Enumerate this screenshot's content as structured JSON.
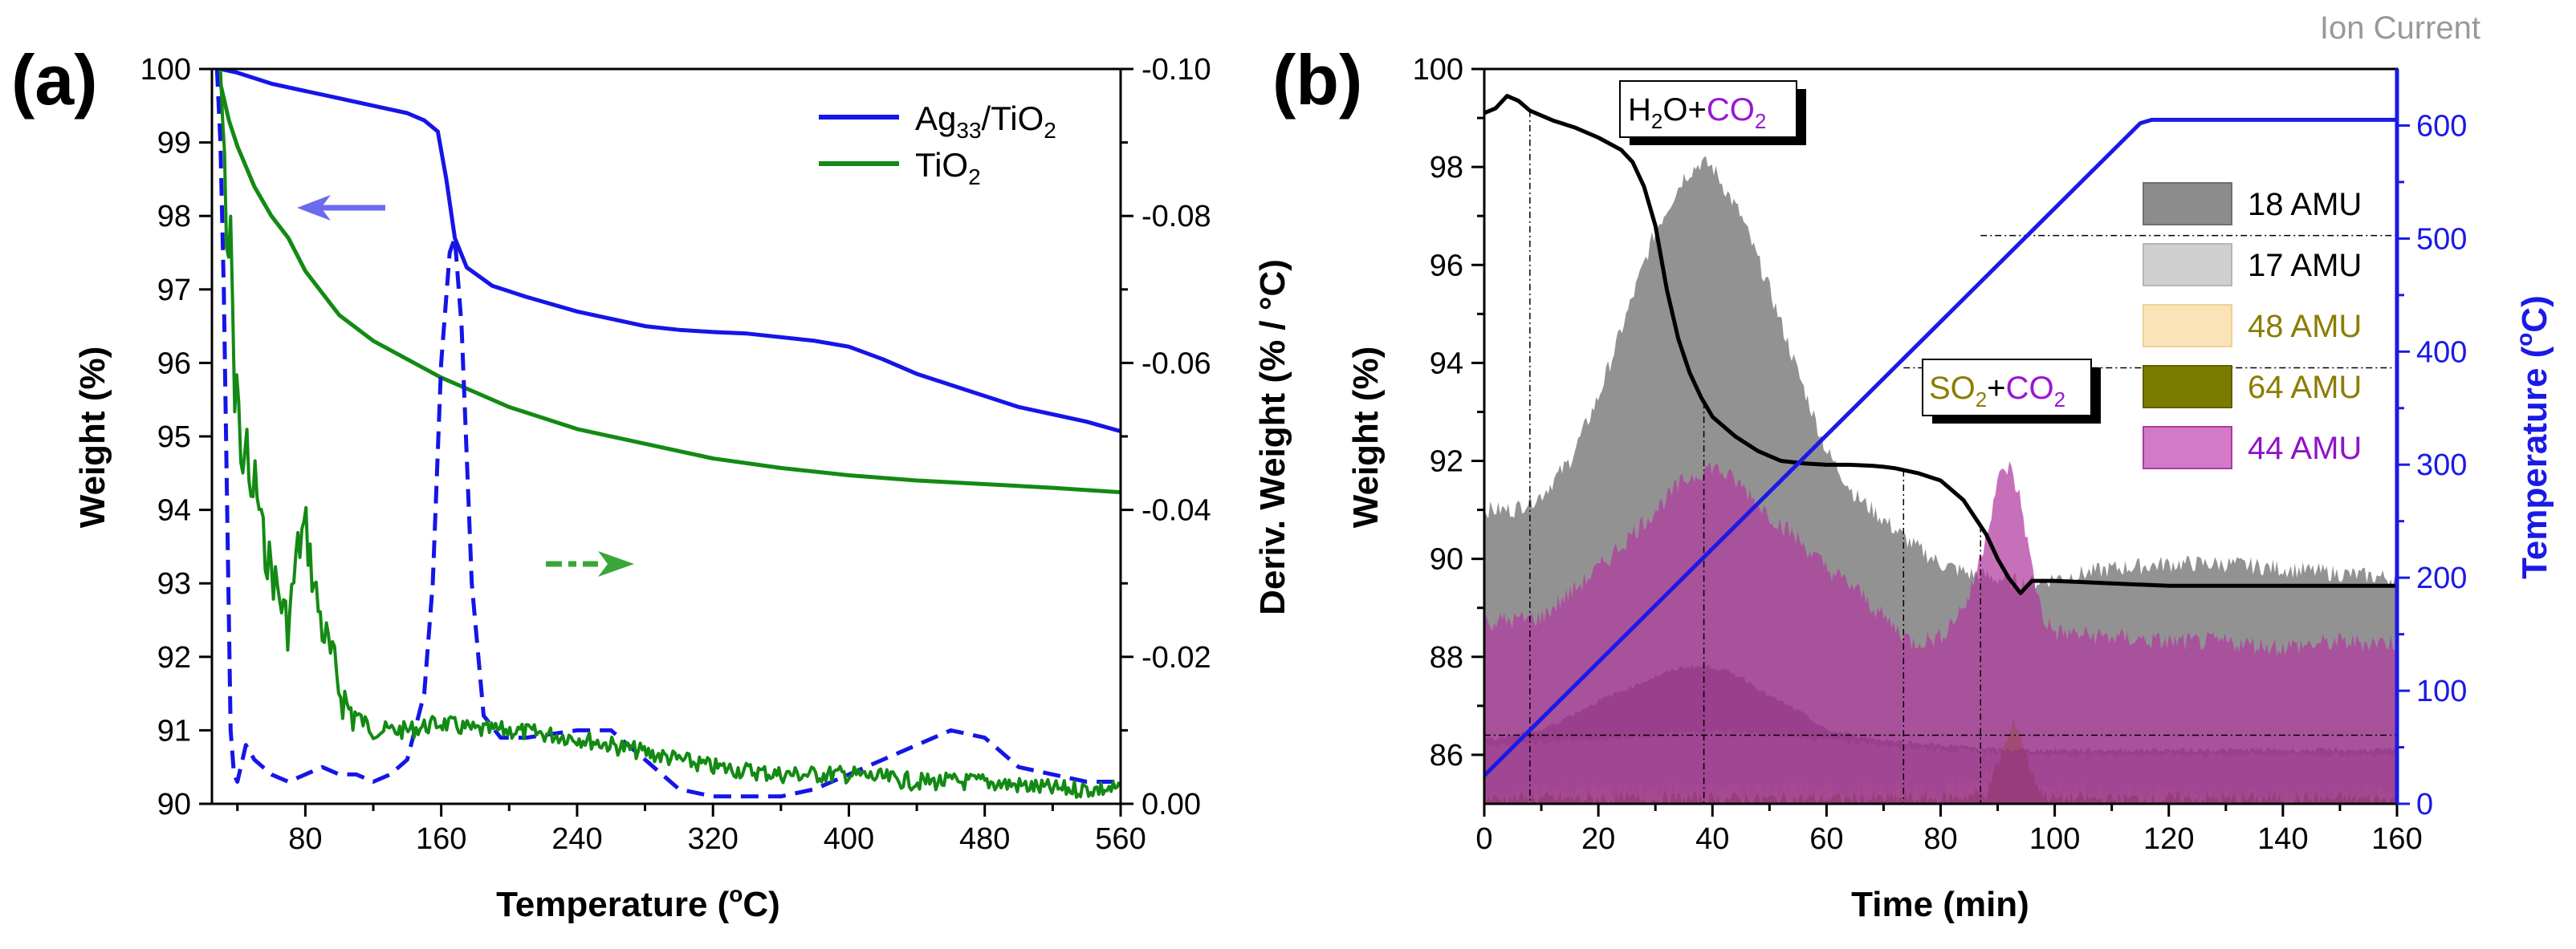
{
  "panels": {
    "a": {
      "label": "(a)",
      "xlabel_main": "Temperature (",
      "xlabel_unit": "o",
      "xlabel_tail": "C)",
      "ylabel_left": "Weight (%)",
      "ylabel_right": "Deriv. Weight (% / °C)",
      "legend": [
        {
          "pre": "Ag",
          "sub1": "33",
          "mid": "/TiO",
          "sub2": "2",
          "color": "#1515e8"
        },
        {
          "pre": "TiO",
          "sub1": "2",
          "mid": "",
          "sub2": "",
          "color": "#138a13"
        }
      ]
    },
    "b": {
      "label": "(b)",
      "xlabel": "Time (min)",
      "ylabel_left": "Weight (%)",
      "ylabel_right_main": "Temperature (",
      "ylabel_right_unit": "o",
      "ylabel_right_tail": "C)",
      "corner_label": "Ion Current",
      "annotation1": {
        "a": "H",
        "a_sub": "2",
        "b": "O+",
        "c": "CO",
        "c_sub": "2"
      },
      "annotation2": {
        "a": "SO",
        "a_sub": "2",
        "b": "+",
        "c": "CO",
        "c_sub": "2"
      },
      "legend": [
        {
          "label": "18 AMU",
          "fill": "#8c8c8c",
          "text": "#000000"
        },
        {
          "label": "17 AMU",
          "fill": "#cfcfcf",
          "text": "#000000"
        },
        {
          "label": "48 AMU",
          "fill": "#fbe3b8",
          "text": "#8b7d00"
        },
        {
          "label": "64 AMU",
          "fill": "#7b7b00",
          "text": "#8b7d00"
        },
        {
          "label": "44 AMU",
          "fill": "#d27ac8",
          "text": "#8e12c9"
        }
      ]
    }
  },
  "chart_data": [
    {
      "type": "line",
      "panel": "a",
      "xlim": [
        25,
        560
      ],
      "xticks": [
        80,
        160,
        240,
        320,
        400,
        480,
        560
      ],
      "ylim_left": [
        90,
        100
      ],
      "yticks_left": [
        90,
        91,
        92,
        93,
        94,
        95,
        96,
        97,
        98,
        99,
        100
      ],
      "ylim_right": [
        0.0,
        -0.1
      ],
      "yticks_right": [
        "0.00",
        "-0.02",
        "-0.04",
        "-0.06",
        "-0.08",
        "-0.10"
      ],
      "series": [
        {
          "name": "Ag33/TiO2",
          "axis": "left",
          "style": "solid",
          "color": "#1515e8",
          "x": [
            28,
            30,
            40,
            60,
            80,
            100,
            120,
            140,
            150,
            158,
            163,
            168,
            175,
            190,
            210,
            240,
            260,
            280,
            300,
            320,
            340,
            360,
            380,
            400,
            420,
            440,
            460,
            480,
            500,
            520,
            540,
            560
          ],
          "y": [
            100,
            100,
            99.95,
            99.8,
            99.7,
            99.6,
            99.5,
            99.4,
            99.3,
            99.15,
            98.5,
            97.7,
            97.3,
            97.05,
            96.9,
            96.7,
            96.6,
            96.5,
            96.45,
            96.42,
            96.4,
            96.35,
            96.3,
            96.22,
            96.05,
            95.85,
            95.7,
            95.55,
            95.4,
            95.3,
            95.2,
            95.07
          ]
        },
        {
          "name": "TiO2",
          "axis": "left",
          "style": "solid",
          "color": "#138a13",
          "x": [
            28,
            30,
            35,
            40,
            50,
            60,
            70,
            80,
            90,
            100,
            120,
            140,
            160,
            180,
            200,
            240,
            280,
            320,
            360,
            400,
            440,
            480,
            520,
            560
          ],
          "y": [
            100,
            99.8,
            99.3,
            98.95,
            98.4,
            98.0,
            97.7,
            97.25,
            96.95,
            96.65,
            96.3,
            96.05,
            95.8,
            95.6,
            95.4,
            95.1,
            94.9,
            94.7,
            94.57,
            94.47,
            94.4,
            94.35,
            94.3,
            94.24
          ]
        },
        {
          "name": "Ag33/TiO2 deriv.",
          "axis": "right",
          "style": "dashed",
          "color": "#1515e8",
          "x": [
            28,
            30,
            32,
            34,
            36,
            38,
            40,
            45,
            50,
            60,
            70,
            80,
            90,
            100,
            110,
            120,
            130,
            140,
            150,
            155,
            160,
            165,
            168,
            172,
            178,
            185,
            195,
            210,
            240,
            260,
            280,
            300,
            320,
            360,
            380,
            400,
            420,
            440,
            460,
            480,
            500,
            520,
            540,
            560
          ],
          "y": [
            -0.1,
            -0.09,
            -0.07,
            -0.04,
            -0.01,
            -0.004,
            -0.003,
            -0.008,
            -0.006,
            -0.004,
            -0.003,
            -0.004,
            -0.005,
            -0.004,
            -0.004,
            -0.003,
            -0.004,
            -0.006,
            -0.015,
            -0.03,
            -0.06,
            -0.075,
            -0.077,
            -0.065,
            -0.03,
            -0.012,
            -0.009,
            -0.009,
            -0.01,
            -0.01,
            -0.006,
            -0.002,
            -0.001,
            -0.001,
            -0.002,
            -0.004,
            -0.006,
            -0.008,
            -0.01,
            -0.009,
            -0.005,
            -0.004,
            -0.003,
            -0.003
          ]
        },
        {
          "name": "TiO2 deriv.",
          "axis": "right",
          "style": "dashed-noisy",
          "color": "#138a13",
          "x": [
            30,
            32,
            34,
            36,
            38,
            40,
            42,
            45,
            48,
            50,
            55,
            60,
            65,
            70,
            75,
            80,
            85,
            90,
            95,
            100,
            105,
            110,
            120,
            140,
            160,
            180,
            200,
            240,
            280,
            320,
            360,
            400,
            440,
            480,
            520,
            560
          ],
          "y": [
            -0.1,
            -0.09,
            -0.07,
            -0.08,
            -0.055,
            -0.06,
            -0.045,
            -0.05,
            -0.04,
            -0.045,
            -0.036,
            -0.032,
            -0.028,
            -0.024,
            -0.034,
            -0.038,
            -0.03,
            -0.024,
            -0.02,
            -0.016,
            -0.013,
            -0.012,
            -0.01,
            -0.01,
            -0.011,
            -0.01,
            -0.01,
            -0.009,
            -0.007,
            -0.005,
            -0.004,
            -0.004,
            -0.003,
            -0.003,
            -0.002,
            -0.002
          ]
        }
      ]
    },
    {
      "type": "area",
      "panel": "b",
      "xlim": [
        0,
        160
      ],
      "xticks": [
        0,
        20,
        40,
        60,
        80,
        100,
        120,
        140,
        160
      ],
      "ylim_left": [
        85,
        100
      ],
      "yticks_left": [
        86,
        88,
        90,
        92,
        94,
        96,
        98,
        100
      ],
      "ylim_right": [
        0,
        650
      ],
      "yticks_right": [
        0,
        100,
        200,
        300,
        400,
        500,
        600
      ],
      "series": [
        {
          "name": "18 AMU",
          "kind": "area",
          "color": "#8c8c8c",
          "x": [
            0,
            5,
            10,
            15,
            20,
            25,
            30,
            35,
            38,
            40,
            45,
            50,
            55,
            60,
            65,
            70,
            75,
            80,
            85,
            90,
            95,
            100,
            110,
            120,
            130,
            140,
            150,
            160
          ],
          "y": [
            91.0,
            91.0,
            91.3,
            92.0,
            93.3,
            95.0,
            96.7,
            97.8,
            98.1,
            98.0,
            97.0,
            95.5,
            93.8,
            92.2,
            91.3,
            90.8,
            90.3,
            89.9,
            89.7,
            89.6,
            89.5,
            89.6,
            89.8,
            89.9,
            89.9,
            89.8,
            89.7,
            89.6
          ]
        },
        {
          "name": "17 AMU",
          "kind": "area",
          "color": "#cfcfcf",
          "x": [
            0,
            20,
            40,
            60,
            80,
            100,
            120,
            140,
            160
          ],
          "y": [
            86.2,
            86.3,
            86.5,
            86.3,
            86.1,
            86.0,
            86.0,
            86.0,
            86.0
          ]
        },
        {
          "name": "48 AMU",
          "kind": "area",
          "color": "#fbe3b8",
          "x": [
            0,
            20,
            40,
            60,
            80,
            90,
            95,
            100,
            120,
            140,
            160
          ],
          "y": [
            85.2,
            85.3,
            85.3,
            85.3,
            85.3,
            85.6,
            85.5,
            85.3,
            85.2,
            85.2,
            85.2
          ]
        },
        {
          "name": "64 AMU",
          "kind": "area",
          "color": "#7b7b00",
          "x": [
            0,
            80,
            88,
            90,
            92,
            93,
            94,
            96,
            98,
            100,
            160
          ],
          "y": [
            85.1,
            85.1,
            85.2,
            85.8,
            86.4,
            86.7,
            86.4,
            85.6,
            85.2,
            85.1,
            85.1
          ]
        },
        {
          "name": "44 AMU",
          "kind": "area",
          "color": "#b1399f",
          "x": [
            0,
            10,
            20,
            30,
            35,
            40,
            45,
            50,
            55,
            60,
            65,
            70,
            75,
            80,
            85,
            88,
            90,
            92,
            94,
            96,
            98,
            100,
            110,
            120,
            130,
            140,
            150,
            160
          ],
          "y": [
            88.7,
            88.8,
            89.8,
            91.0,
            91.6,
            91.9,
            91.5,
            90.9,
            90.4,
            89.8,
            89.4,
            88.8,
            88.3,
            88.4,
            89.2,
            90.5,
            91.6,
            91.9,
            91.2,
            89.8,
            88.8,
            88.5,
            88.4,
            88.3,
            88.3,
            88.2,
            88.3,
            88.3
          ]
        },
        {
          "name": "44 AMU inner",
          "kind": "area",
          "color": "#8e2f7f",
          "x": [
            0,
            10,
            20,
            30,
            35,
            40,
            45,
            50,
            55,
            60,
            70,
            80,
            90,
            100,
            120,
            140,
            160
          ],
          "y": [
            86.3,
            86.5,
            87.1,
            87.6,
            87.8,
            87.8,
            87.6,
            87.2,
            86.9,
            86.5,
            86.3,
            86.2,
            86.1,
            86.1,
            86.1,
            86.1,
            86.1
          ]
        },
        {
          "name": "Weight",
          "kind": "line",
          "axis": "left",
          "color": "#000000",
          "x": [
            0,
            2,
            4,
            6,
            8,
            12,
            16,
            20,
            24,
            26,
            28,
            30,
            32,
            34,
            36,
            38,
            40,
            44,
            48,
            52,
            56,
            60,
            64,
            68,
            70,
            72,
            76,
            80,
            84,
            88,
            90,
            92,
            94,
            96,
            98,
            100,
            110,
            120,
            140,
            160
          ],
          "y": [
            99.1,
            99.2,
            99.45,
            99.35,
            99.15,
            98.95,
            98.8,
            98.6,
            98.35,
            98.1,
            97.6,
            96.8,
            95.5,
            94.5,
            93.8,
            93.3,
            92.9,
            92.5,
            92.2,
            92.0,
            91.95,
            91.92,
            91.92,
            91.9,
            91.88,
            91.85,
            91.75,
            91.6,
            91.2,
            90.5,
            90.0,
            89.6,
            89.3,
            89.55,
            89.55,
            89.55,
            89.5,
            89.45,
            89.45,
            89.45
          ]
        },
        {
          "name": "Temperature",
          "kind": "line",
          "axis": "right",
          "color": "#1a1ae6",
          "x": [
            0,
            115,
            117,
            160
          ],
          "y": [
            25,
            602,
            605,
            605
          ]
        }
      ]
    }
  ]
}
